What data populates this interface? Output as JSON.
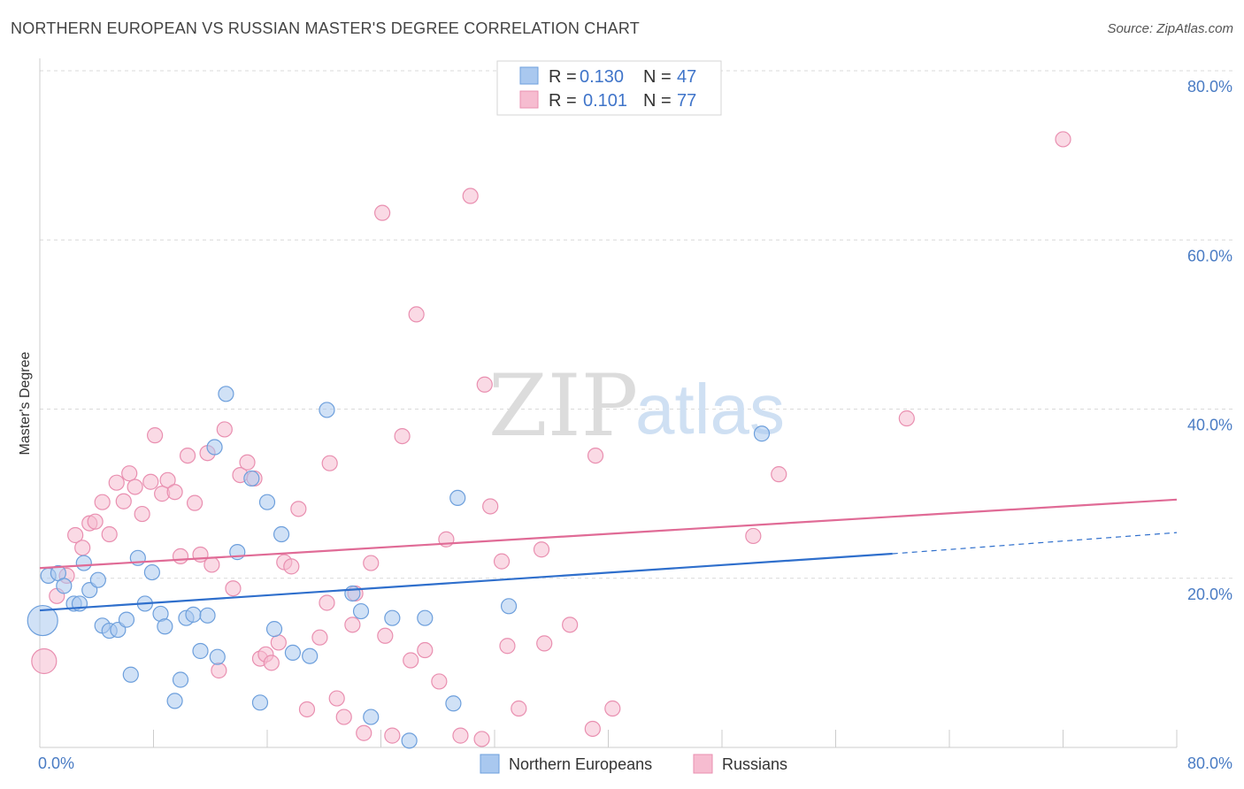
{
  "title": "NORTHERN EUROPEAN VS RUSSIAN MASTER'S DEGREE CORRELATION CHART",
  "source": "Source: ZipAtlas.com",
  "watermark": {
    "zip": "ZIP",
    "atlas": "atlas"
  },
  "colors": {
    "blue_fill": "#a9c8ef",
    "blue_stroke": "#6d9fdc",
    "blue_line": "#2f6fcc",
    "pink_fill": "#f6bcd0",
    "pink_stroke": "#e98fb0",
    "pink_line": "#e06b96",
    "grid": "#d9d9d9",
    "axis_label": "#4a7cc4"
  },
  "legend": {
    "rows": [
      {
        "r_label": "R =",
        "r_value": "0.130",
        "n_label": "N =",
        "n_value": "47",
        "series": "blue"
      },
      {
        "r_label": "R =",
        "r_value": "0.101",
        "n_label": "N =",
        "n_value": "77",
        "series": "pink"
      }
    ]
  },
  "chart_data": {
    "type": "scatter",
    "title": "NORTHERN EUROPEAN VS RUSSIAN MASTER'S DEGREE CORRELATION CHART",
    "xlabel": "",
    "ylabel": "Master's Degree",
    "xlim": [
      0,
      80
    ],
    "ylim": [
      0,
      80
    ],
    "x_ticks": [
      "0.0%",
      "80.0%"
    ],
    "y_ticks": [
      "20.0%",
      "40.0%",
      "60.0%",
      "80.0%"
    ],
    "y_tick_values": [
      20,
      40,
      60,
      80
    ],
    "grid": true,
    "legend_placement": "bottom",
    "series": [
      {
        "name": "Northern Europeans",
        "color": "blue",
        "trend": {
          "x0": 0,
          "y0": 16.2,
          "x1": 60,
          "y1": 22.9,
          "dashed_to_x": 80,
          "dashed_to_y": 25.4
        },
        "points": [
          [
            0.2,
            15.0,
            3
          ],
          [
            0.6,
            20.3,
            1
          ],
          [
            1.3,
            20.6,
            1
          ],
          [
            1.7,
            19.1,
            1
          ],
          [
            2.4,
            17.0,
            1
          ],
          [
            2.8,
            17.0,
            1
          ],
          [
            3.1,
            21.8,
            1
          ],
          [
            3.5,
            18.6,
            1
          ],
          [
            4.1,
            19.8,
            1
          ],
          [
            4.4,
            14.4,
            1
          ],
          [
            4.9,
            13.8,
            1
          ],
          [
            5.5,
            13.9,
            1
          ],
          [
            6.1,
            15.1,
            1
          ],
          [
            6.4,
            8.6,
            1
          ],
          [
            6.9,
            22.4,
            1
          ],
          [
            7.4,
            17.0,
            1
          ],
          [
            7.9,
            20.7,
            1
          ],
          [
            8.5,
            15.8,
            1
          ],
          [
            8.8,
            14.3,
            1
          ],
          [
            9.5,
            5.5,
            1
          ],
          [
            9.9,
            8.0,
            1
          ],
          [
            10.3,
            15.3,
            1
          ],
          [
            10.8,
            15.7,
            1
          ],
          [
            11.3,
            11.4,
            1
          ],
          [
            11.8,
            15.6,
            1
          ],
          [
            12.5,
            10.7,
            1
          ],
          [
            13.1,
            41.8,
            1
          ],
          [
            12.3,
            35.5,
            1
          ],
          [
            13.9,
            23.1,
            1
          ],
          [
            14.9,
            31.8,
            1
          ],
          [
            15.5,
            5.3,
            1
          ],
          [
            16.0,
            29.0,
            1
          ],
          [
            16.5,
            14.0,
            1
          ],
          [
            17.0,
            25.2,
            1
          ],
          [
            17.8,
            11.2,
            1
          ],
          [
            19.0,
            10.8,
            1
          ],
          [
            20.2,
            39.9,
            1
          ],
          [
            22.0,
            18.2,
            1
          ],
          [
            22.6,
            16.1,
            1
          ],
          [
            23.3,
            3.6,
            1
          ],
          [
            24.8,
            15.3,
            1
          ],
          [
            26.0,
            0.8,
            1
          ],
          [
            27.1,
            15.3,
            1
          ],
          [
            29.1,
            5.2,
            1
          ],
          [
            29.4,
            29.5,
            1
          ],
          [
            33.0,
            16.7,
            1
          ],
          [
            50.8,
            37.1,
            1
          ]
        ]
      },
      {
        "name": "Russians",
        "color": "pink",
        "trend": {
          "x0": 0,
          "y0": 21.2,
          "x1": 80,
          "y1": 29.3
        },
        "points": [
          [
            0.3,
            10.2,
            2
          ],
          [
            1.2,
            17.9,
            1
          ],
          [
            1.9,
            20.3,
            1
          ],
          [
            2.5,
            25.1,
            1
          ],
          [
            3.0,
            23.6,
            1
          ],
          [
            3.5,
            26.5,
            1
          ],
          [
            3.9,
            26.7,
            1
          ],
          [
            4.4,
            29.0,
            1
          ],
          [
            4.9,
            25.2,
            1
          ],
          [
            5.4,
            31.3,
            1
          ],
          [
            5.9,
            29.1,
            1
          ],
          [
            6.3,
            32.4,
            1
          ],
          [
            6.7,
            30.8,
            1
          ],
          [
            7.2,
            27.6,
            1
          ],
          [
            7.8,
            31.4,
            1
          ],
          [
            8.1,
            36.9,
            1
          ],
          [
            8.6,
            30.0,
            1
          ],
          [
            9.0,
            31.6,
            1
          ],
          [
            9.5,
            30.2,
            1
          ],
          [
            9.9,
            22.6,
            1
          ],
          [
            10.4,
            34.5,
            1
          ],
          [
            10.9,
            28.9,
            1
          ],
          [
            11.3,
            22.8,
            1
          ],
          [
            11.8,
            34.8,
            1
          ],
          [
            12.1,
            21.6,
            1
          ],
          [
            12.6,
            9.1,
            1
          ],
          [
            13.0,
            37.6,
            1
          ],
          [
            13.6,
            18.8,
            1
          ],
          [
            14.1,
            32.2,
            1
          ],
          [
            14.6,
            33.7,
            1
          ],
          [
            15.1,
            31.8,
            1
          ],
          [
            15.5,
            10.5,
            1
          ],
          [
            15.9,
            11.0,
            1
          ],
          [
            16.3,
            10.0,
            1
          ],
          [
            16.8,
            12.4,
            1
          ],
          [
            17.2,
            21.9,
            1
          ],
          [
            17.7,
            21.4,
            1
          ],
          [
            18.2,
            28.2,
            1
          ],
          [
            18.8,
            4.5,
            1
          ],
          [
            19.7,
            13.0,
            1
          ],
          [
            20.2,
            17.1,
            1
          ],
          [
            20.4,
            33.6,
            1
          ],
          [
            20.9,
            5.8,
            1
          ],
          [
            21.4,
            3.6,
            1
          ],
          [
            22.0,
            14.5,
            1
          ],
          [
            22.2,
            18.2,
            1
          ],
          [
            22.8,
            1.7,
            1
          ],
          [
            23.3,
            21.8,
            1
          ],
          [
            24.1,
            63.2,
            1
          ],
          [
            24.3,
            13.2,
            1
          ],
          [
            24.8,
            1.4,
            1
          ],
          [
            25.5,
            36.8,
            1
          ],
          [
            26.1,
            10.3,
            1
          ],
          [
            26.5,
            51.2,
            1
          ],
          [
            27.1,
            11.5,
            1
          ],
          [
            28.1,
            7.8,
            1
          ],
          [
            28.6,
            24.6,
            1
          ],
          [
            29.6,
            1.4,
            1
          ],
          [
            30.3,
            65.2,
            1
          ],
          [
            31.1,
            1.0,
            1
          ],
          [
            31.3,
            42.9,
            1
          ],
          [
            31.7,
            28.5,
            1
          ],
          [
            32.5,
            22.0,
            1
          ],
          [
            32.9,
            12.0,
            1
          ],
          [
            33.7,
            4.6,
            1
          ],
          [
            35.3,
            23.4,
            1
          ],
          [
            35.5,
            12.3,
            1
          ],
          [
            37.3,
            14.5,
            1
          ],
          [
            38.9,
            2.2,
            1
          ],
          [
            39.1,
            34.5,
            1
          ],
          [
            40.3,
            4.6,
            1
          ],
          [
            50.2,
            25.0,
            1
          ],
          [
            52.0,
            32.3,
            1
          ],
          [
            61.0,
            38.9,
            1
          ],
          [
            72.0,
            71.9,
            1
          ]
        ]
      }
    ]
  },
  "bottom_legend": [
    {
      "label": "Northern Europeans",
      "series": "blue"
    },
    {
      "label": "Russians",
      "series": "pink"
    }
  ]
}
